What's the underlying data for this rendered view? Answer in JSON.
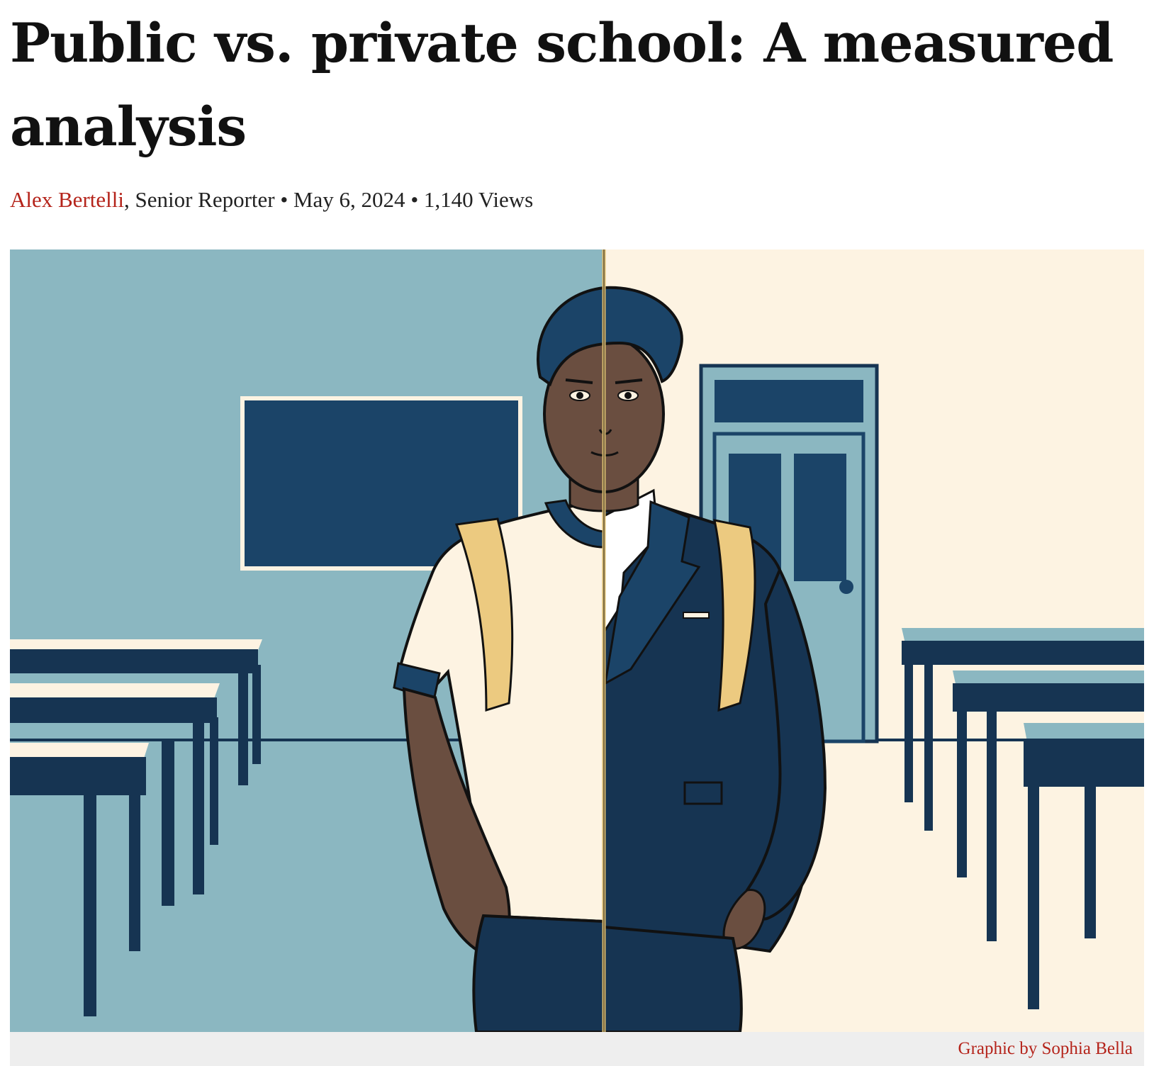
{
  "article": {
    "headline": "Public vs. private school: A measured analysis",
    "author": "Alex Bertelli",
    "author_title": ", Senior Reporter",
    "separator": " • ",
    "date": "May 6, 2024",
    "views": "1,140 Views",
    "caption": "Graphic by Sophia Bella"
  },
  "illustration": {
    "subject": "student-split-public-private",
    "colors": {
      "public_wall": "#8bb7c1",
      "private_wall": "#fdf3e2",
      "navy": "#163452",
      "mid_navy": "#1b4468",
      "skin": "#6a4e40",
      "strap": "#ecca80",
      "divider": "#d7b96f"
    }
  }
}
